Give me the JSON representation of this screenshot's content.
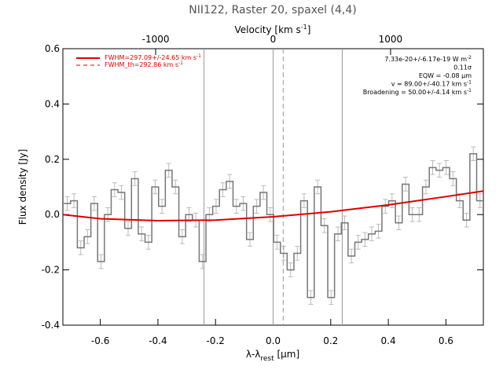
{
  "chart_data": {
    "type": "step",
    "title": "NII122, Raster 20, spaxel (4,4)",
    "top_axis_label": {
      "text": "Velocity [km s",
      "sup": "-1",
      "end": "]"
    },
    "xlabel": {
      "main": "λ-λ",
      "sub": "rest",
      "end": " [μm]"
    },
    "ylabel": "Flux density [Jy]",
    "xlim": [
      -0.73,
      0.73
    ],
    "xticks": [
      -0.6,
      -0.4,
      -0.2,
      {
        "value": 0,
        "label": "0.0"
      },
      0.2,
      0.4,
      0.6
    ],
    "x2lim": [
      -1790,
      1790
    ],
    "x2ticks": [
      -1000,
      0,
      1000
    ],
    "ylim": [
      -0.4,
      0.6
    ],
    "yticks": [
      -0.4,
      -0.2,
      {
        "value": 0,
        "label": "0.0"
      },
      0.2,
      0.4,
      0.6
    ],
    "x": [
      -0.715,
      -0.6915,
      -0.668,
      -0.6445,
      -0.621,
      -0.5975,
      -0.574,
      -0.5505,
      -0.527,
      -0.5035,
      -0.48,
      -0.4565,
      -0.433,
      -0.4095,
      -0.386,
      -0.3625,
      -0.339,
      -0.3155,
      -0.292,
      -0.2685,
      -0.245,
      -0.2215,
      -0.198,
      -0.1745,
      -0.151,
      -0.1275,
      -0.104,
      -0.0805,
      -0.057,
      -0.0335,
      -0.01,
      0.0135,
      0.037,
      0.0605,
      0.084,
      0.1075,
      0.131,
      0.1545,
      0.178,
      0.2015,
      0.225,
      0.2485,
      0.272,
      0.2955,
      0.319,
      0.3425,
      0.366,
      0.3895,
      0.413,
      0.4365,
      0.46,
      0.4835,
      0.507,
      0.5305,
      0.554,
      0.5775,
      0.601,
      0.6245,
      0.648,
      0.6715,
      0.695,
      0.7185
    ],
    "values": [
      0.04,
      0.05,
      -0.12,
      -0.08,
      0.04,
      -0.17,
      0.0,
      0.09,
      0.08,
      -0.05,
      0.13,
      -0.07,
      -0.1,
      0.1,
      0.03,
      0.16,
      0.1,
      -0.08,
      0.0,
      -0.02,
      -0.17,
      0.0,
      0.03,
      0.09,
      0.12,
      0.03,
      0.04,
      -0.09,
      0.03,
      0.08,
      0.0,
      -0.1,
      -0.14,
      -0.2,
      -0.14,
      0.05,
      -0.3,
      0.1,
      -0.04,
      -0.3,
      -0.07,
      -0.03,
      -0.15,
      -0.1,
      -0.09,
      -0.07,
      -0.06,
      0.03,
      0.05,
      -0.03,
      0.11,
      0.0,
      0.0,
      0.1,
      0.17,
      0.16,
      0.17,
      0.13,
      0.05,
      -0.02,
      0.22,
      0.05
    ],
    "error": 0.025,
    "color": "#777777",
    "error_color": "#bbbbbb",
    "fit": {
      "x": [
        -0.73,
        -0.6,
        -0.4,
        -0.2,
        0,
        0.2,
        0.4,
        0.6,
        0.73
      ],
      "values": [
        0.0,
        -0.015,
        -0.022,
        -0.02,
        -0.008,
        0.01,
        0.035,
        0.065,
        0.085
      ],
      "color": "#dd0000"
    },
    "vlines": [
      -0.24,
      0,
      0.24
    ],
    "dashed_vline": 0.035,
    "legend": [
      {
        "text": "FWHM=297.09+/-24.65 km s",
        "sup": "-1"
      },
      {
        "text": "FWHM_th=292.86 km s",
        "sup": "-1"
      }
    ],
    "annotations": [
      {
        "text": "7.33e-20+/-6.17e-19 W m",
        "sup": "-2"
      },
      {
        "text": "0.11σ"
      },
      {
        "text": "EQW = -0.08 μm"
      },
      {
        "text": "v = 89.00+/-40.17 km s",
        "sup": "-1"
      },
      {
        "text": "Broadening = 50.00+/-4.14 km s",
        "sup": "-1"
      }
    ]
  }
}
